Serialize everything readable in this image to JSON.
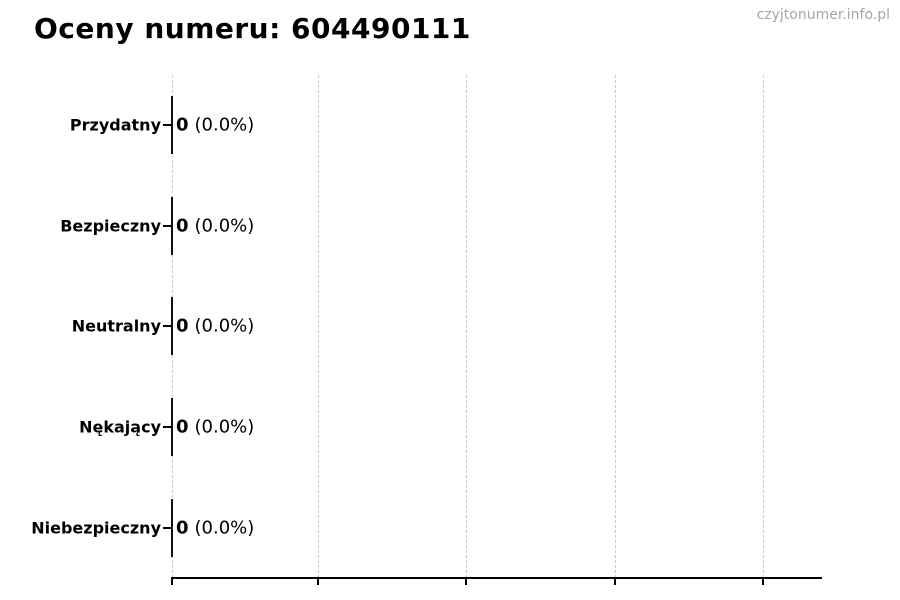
{
  "header": {
    "title": "Oceny numeru: 604490111",
    "watermark": "czyjtonumer.info.pl"
  },
  "colors": {
    "background": "#ffffff",
    "text": "#000000",
    "watermark": "#a6a6a6",
    "gridline": "#c9c9c9",
    "axis": "#000000",
    "bar_edge": "#111111"
  },
  "chart_data": {
    "type": "bar",
    "orientation": "horizontal",
    "title": "Oceny numeru: 604490111",
    "categories": [
      "Przydatny",
      "Bezpieczny",
      "Neutralny",
      "Nękający",
      "Niebezpieczny"
    ],
    "values": [
      0,
      0,
      0,
      0,
      0
    ],
    "value_labels": [
      "0 (0.0%)",
      "0 (0.0%)",
      "0 (0.0%)",
      "0 (0.0%)",
      "0 (0.0%)"
    ],
    "xlabel": "",
    "ylabel": "",
    "x_tick_labels": [],
    "grid": "5 vertical dashed gridlines, evenly spaced, unlabeled",
    "legend": "none",
    "annotation_style": "bold count followed by percent in parentheses at bar end"
  },
  "rows": [
    {
      "label": "Przydatny",
      "value": "0",
      "percent": "(0.0%)"
    },
    {
      "label": "Bezpieczny",
      "value": "0",
      "percent": "(0.0%)"
    },
    {
      "label": "Neutralny",
      "value": "0",
      "percent": "(0.0%)"
    },
    {
      "label": "Nękający",
      "value": "0",
      "percent": "(0.0%)"
    },
    {
      "label": "Niebezpieczny",
      "value": "0",
      "percent": "(0.0%)"
    }
  ]
}
